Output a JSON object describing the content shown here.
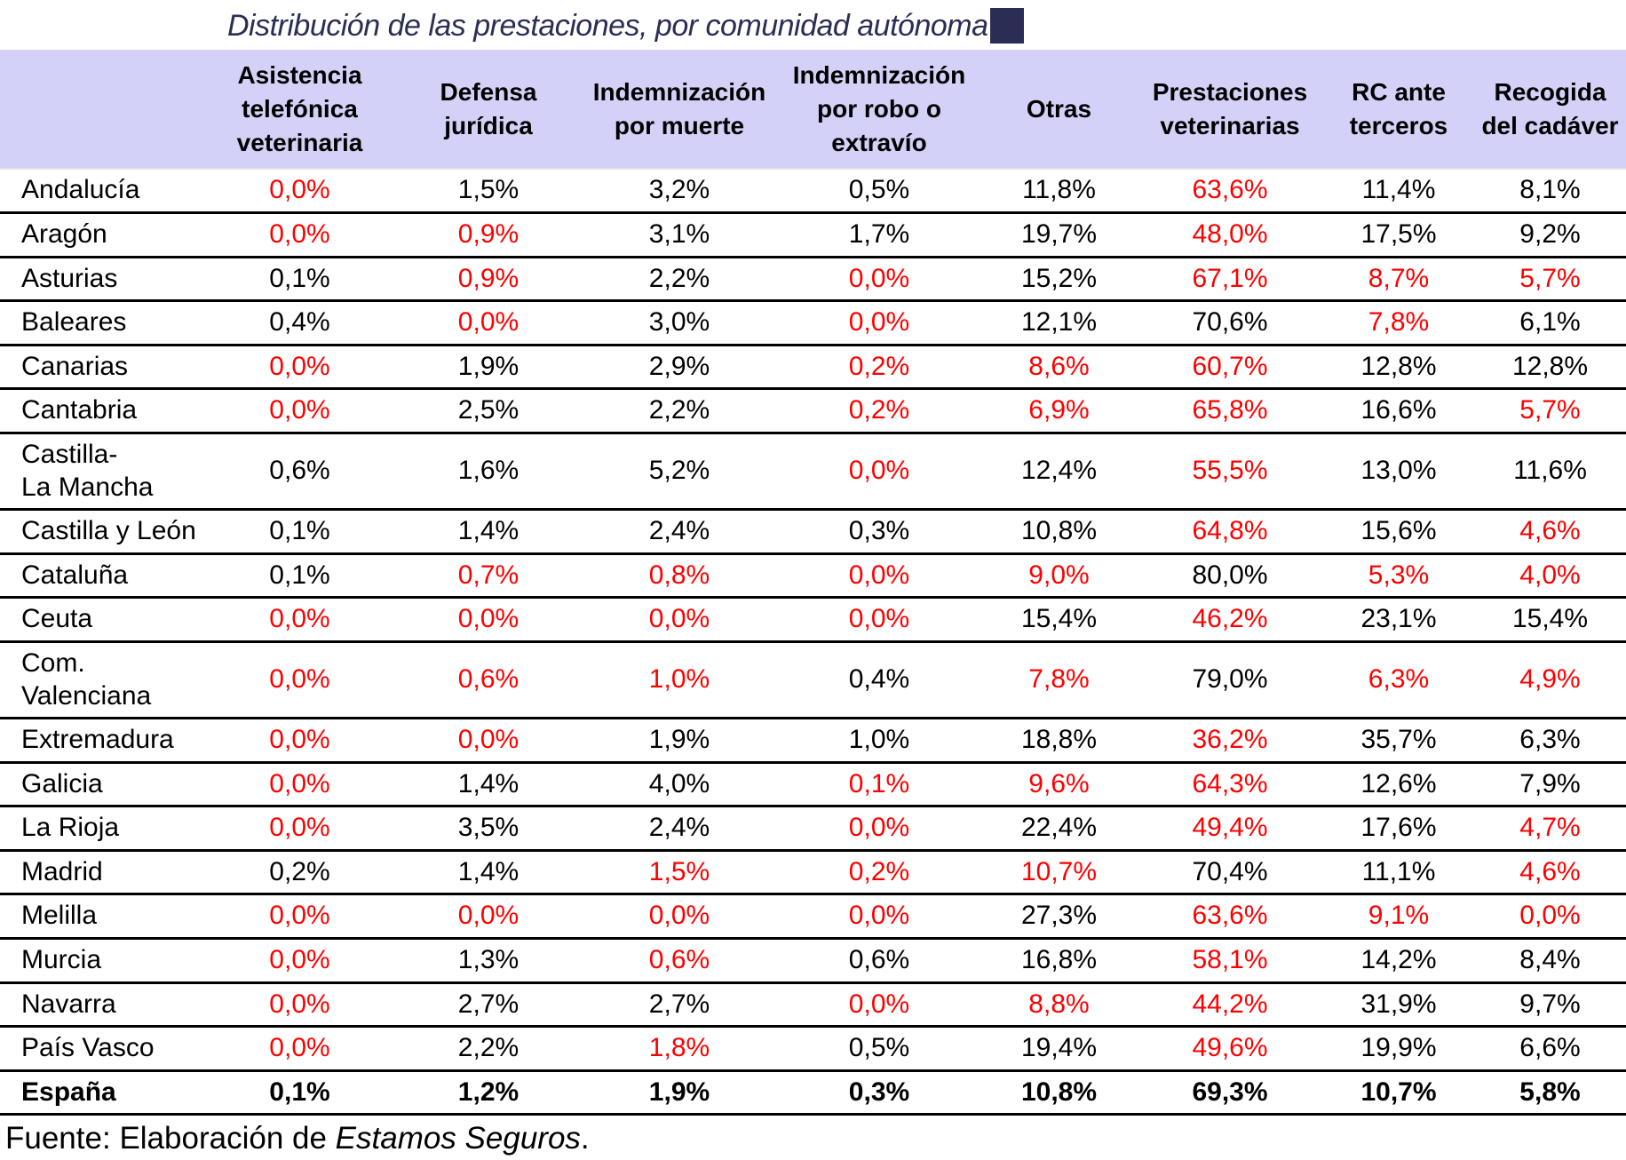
{
  "title": "Distribución de las prestaciones, por comunidad autónoma",
  "colors": {
    "header_background": "#d3d1f7",
    "highlight_red": "#fe0000",
    "title_navy": "#2a2e55",
    "text_black": "#000000"
  },
  "columns": [
    "",
    "Asistencia telefónica veterinaria",
    "Defensa jurídica",
    "Indemnización por muerte",
    "Indemnización por robo o extravío",
    "Otras",
    "Prestaciones veterinarias",
    "RC ante terceros",
    "Recogida del cadáver"
  ],
  "footer": {
    "label": "Fuente:",
    "text": "Elaboración de",
    "publisher": "Estamos Seguros",
    "suffix": "."
  },
  "chart_data": {
    "type": "table",
    "title": "Distribución de las prestaciones, por comunidad autónoma",
    "unit": "%",
    "value_columns": [
      "Asistencia telefónica veterinaria",
      "Defensa jurídica",
      "Indemnización por muerte",
      "Indemnización por robo o extravío",
      "Otras",
      "Prestaciones veterinarias",
      "RC ante terceros",
      "Recogida del cadáver"
    ],
    "red_means": "highlighted value",
    "rows": [
      {
        "region": "Andalucía",
        "values": [
          "0,0%",
          "1,5%",
          "3,2%",
          "0,5%",
          "11,8%",
          "63,6%",
          "11,4%",
          "8,1%"
        ],
        "red": [
          1,
          0,
          0,
          0,
          0,
          1,
          0,
          0
        ],
        "bold": false
      },
      {
        "region": "Aragón",
        "values": [
          "0,0%",
          "0,9%",
          "3,1%",
          "1,7%",
          "19,7%",
          "48,0%",
          "17,5%",
          "9,2%"
        ],
        "red": [
          1,
          1,
          0,
          0,
          0,
          1,
          0,
          0
        ],
        "bold": false
      },
      {
        "region": "Asturias",
        "values": [
          "0,1%",
          "0,9%",
          "2,2%",
          "0,0%",
          "15,2%",
          "67,1%",
          "8,7%",
          "5,7%"
        ],
        "red": [
          0,
          1,
          0,
          1,
          0,
          1,
          1,
          1
        ],
        "bold": false
      },
      {
        "region": "Baleares",
        "values": [
          "0,4%",
          "0,0%",
          "3,0%",
          "0,0%",
          "12,1%",
          "70,6%",
          "7,8%",
          "6,1%"
        ],
        "red": [
          0,
          1,
          0,
          1,
          0,
          0,
          1,
          0
        ],
        "bold": false
      },
      {
        "region": "Canarias",
        "values": [
          "0,0%",
          "1,9%",
          "2,9%",
          "0,2%",
          "8,6%",
          "60,7%",
          "12,8%",
          "12,8%"
        ],
        "red": [
          1,
          0,
          0,
          1,
          1,
          1,
          0,
          0
        ],
        "bold": false
      },
      {
        "region": "Cantabria",
        "values": [
          "0,0%",
          "2,5%",
          "2,2%",
          "0,2%",
          "6,9%",
          "65,8%",
          "16,6%",
          "5,7%"
        ],
        "red": [
          1,
          0,
          0,
          1,
          1,
          1,
          0,
          1
        ],
        "bold": false
      },
      {
        "region": "Castilla-La Mancha",
        "region_display": "Castilla-\nLa Mancha",
        "values": [
          "0,6%",
          "1,6%",
          "5,2%",
          "0,0%",
          "12,4%",
          "55,5%",
          "13,0%",
          "11,6%"
        ],
        "red": [
          0,
          0,
          0,
          1,
          0,
          1,
          0,
          0
        ],
        "bold": false
      },
      {
        "region": "Castilla y León",
        "values": [
          "0,1%",
          "1,4%",
          "2,4%",
          "0,3%",
          "10,8%",
          "64,8%",
          "15,6%",
          "4,6%"
        ],
        "red": [
          0,
          0,
          0,
          0,
          0,
          1,
          0,
          1
        ],
        "bold": false
      },
      {
        "region": "Cataluña",
        "values": [
          "0,1%",
          "0,7%",
          "0,8%",
          "0,0%",
          "9,0%",
          "80,0%",
          "5,3%",
          "4,0%"
        ],
        "red": [
          0,
          1,
          1,
          1,
          1,
          0,
          1,
          1
        ],
        "bold": false
      },
      {
        "region": "Ceuta",
        "values": [
          "0,0%",
          "0,0%",
          "0,0%",
          "0,0%",
          "15,4%",
          "46,2%",
          "23,1%",
          "15,4%"
        ],
        "red": [
          1,
          1,
          1,
          1,
          0,
          1,
          0,
          0
        ],
        "bold": false
      },
      {
        "region": "Com. Valenciana",
        "region_display": "Com.\nValenciana",
        "values": [
          "0,0%",
          "0,6%",
          "1,0%",
          "0,4%",
          "7,8%",
          "79,0%",
          "6,3%",
          "4,9%"
        ],
        "red": [
          1,
          1,
          1,
          0,
          1,
          0,
          1,
          1
        ],
        "bold": false
      },
      {
        "region": "Extremadura",
        "values": [
          "0,0%",
          "0,0%",
          "1,9%",
          "1,0%",
          "18,8%",
          "36,2%",
          "35,7%",
          "6,3%"
        ],
        "red": [
          1,
          1,
          0,
          0,
          0,
          1,
          0,
          0
        ],
        "bold": false
      },
      {
        "region": "Galicia",
        "values": [
          "0,0%",
          "1,4%",
          "4,0%",
          "0,1%",
          "9,6%",
          "64,3%",
          "12,6%",
          "7,9%"
        ],
        "red": [
          1,
          0,
          0,
          1,
          1,
          1,
          0,
          0
        ],
        "bold": false
      },
      {
        "region": "La Rioja",
        "values": [
          "0,0%",
          "3,5%",
          "2,4%",
          "0,0%",
          "22,4%",
          "49,4%",
          "17,6%",
          "4,7%"
        ],
        "red": [
          1,
          0,
          0,
          1,
          0,
          1,
          0,
          1
        ],
        "bold": false
      },
      {
        "region": "Madrid",
        "values": [
          "0,2%",
          "1,4%",
          "1,5%",
          "0,2%",
          "10,7%",
          "70,4%",
          "11,1%",
          "4,6%"
        ],
        "red": [
          0,
          0,
          1,
          1,
          1,
          0,
          0,
          1
        ],
        "bold": false
      },
      {
        "region": "Melilla",
        "values": [
          "0,0%",
          "0,0%",
          "0,0%",
          "0,0%",
          "27,3%",
          "63,6%",
          "9,1%",
          "0,0%"
        ],
        "red": [
          1,
          1,
          1,
          1,
          0,
          1,
          1,
          1
        ],
        "bold": false
      },
      {
        "region": "Murcia",
        "values": [
          "0,0%",
          "1,3%",
          "0,6%",
          "0,6%",
          "16,8%",
          "58,1%",
          "14,2%",
          "8,4%"
        ],
        "red": [
          1,
          0,
          1,
          0,
          0,
          1,
          0,
          0
        ],
        "bold": false
      },
      {
        "region": "Navarra",
        "values": [
          "0,0%",
          "2,7%",
          "2,7%",
          "0,0%",
          "8,8%",
          "44,2%",
          "31,9%",
          "9,7%"
        ],
        "red": [
          1,
          0,
          0,
          1,
          1,
          1,
          0,
          0
        ],
        "bold": false
      },
      {
        "region": "País Vasco",
        "values": [
          "0,0%",
          "2,2%",
          "1,8%",
          "0,5%",
          "19,4%",
          "49,6%",
          "19,9%",
          "6,6%"
        ],
        "red": [
          1,
          0,
          1,
          0,
          0,
          1,
          0,
          0
        ],
        "bold": false
      },
      {
        "region": "España",
        "values": [
          "0,1%",
          "1,2%",
          "1,9%",
          "0,3%",
          "10,8%",
          "69,3%",
          "10,7%",
          "5,8%"
        ],
        "red": [
          0,
          0,
          0,
          0,
          0,
          0,
          0,
          0
        ],
        "bold": true
      }
    ]
  }
}
